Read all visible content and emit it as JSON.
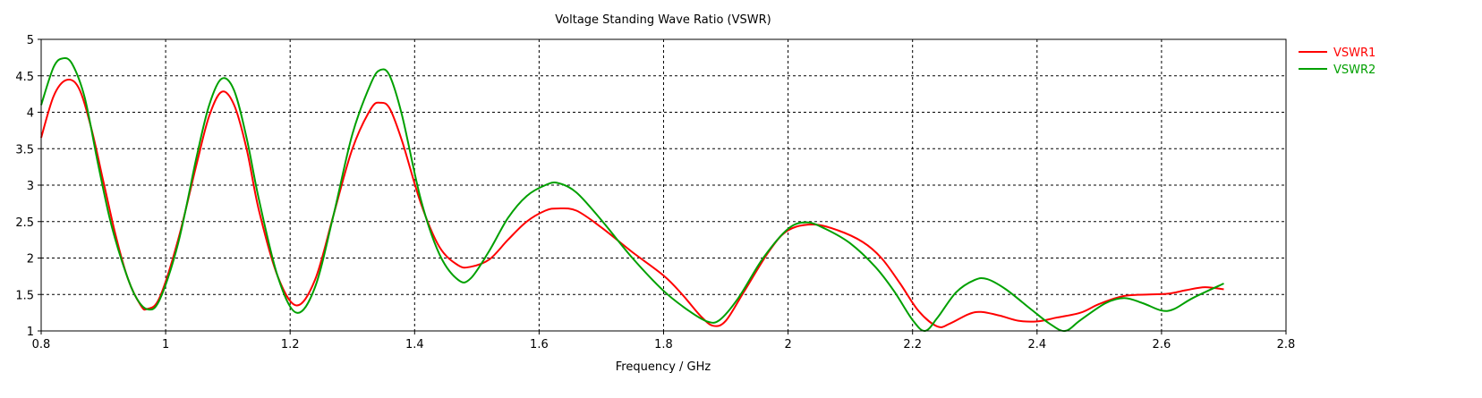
{
  "chart_data": {
    "type": "line",
    "title": "Voltage Standing Wave Ratio (VSWR)",
    "xlabel": "Frequency / GHz",
    "ylabel": "",
    "xlim": [
      0.8,
      2.8
    ],
    "ylim": [
      1,
      5
    ],
    "xticks": [
      0.8,
      1,
      1.2,
      1.4,
      1.6,
      1.8,
      2,
      2.2,
      2.4,
      2.6,
      2.8
    ],
    "yticks": [
      1,
      1.5,
      2,
      2.5,
      3,
      3.5,
      4,
      4.5,
      5
    ],
    "xtick_labels": [
      "0.8",
      "1",
      "1.2",
      "1.4",
      "1.6",
      "1.8",
      "2",
      "2.2",
      "2.4",
      "2.6",
      "2.8"
    ],
    "ytick_labels": [
      "1",
      "1.5",
      "2",
      "2.5",
      "3",
      "3.5",
      "4",
      "4.5",
      "5"
    ],
    "grid": true,
    "legend_position": "top-right",
    "series": [
      {
        "name": "VSWR1",
        "color": "#ff0000",
        "points": [
          [
            0.8,
            3.65
          ],
          [
            0.82,
            4.22
          ],
          [
            0.84,
            4.44
          ],
          [
            0.86,
            4.34
          ],
          [
            0.88,
            3.8
          ],
          [
            0.9,
            3.05
          ],
          [
            0.92,
            2.3
          ],
          [
            0.94,
            1.7
          ],
          [
            0.96,
            1.35
          ],
          [
            0.97,
            1.3
          ],
          [
            0.99,
            1.45
          ],
          [
            1.02,
            2.25
          ],
          [
            1.05,
            3.3
          ],
          [
            1.07,
            3.95
          ],
          [
            1.09,
            4.28
          ],
          [
            1.11,
            4.1
          ],
          [
            1.13,
            3.5
          ],
          [
            1.15,
            2.65
          ],
          [
            1.18,
            1.75
          ],
          [
            1.21,
            1.35
          ],
          [
            1.24,
            1.7
          ],
          [
            1.27,
            2.6
          ],
          [
            1.3,
            3.5
          ],
          [
            1.33,
            4.05
          ],
          [
            1.345,
            4.13
          ],
          [
            1.36,
            4.05
          ],
          [
            1.38,
            3.6
          ],
          [
            1.41,
            2.75
          ],
          [
            1.44,
            2.15
          ],
          [
            1.47,
            1.9
          ],
          [
            1.49,
            1.88
          ],
          [
            1.52,
            1.98
          ],
          [
            1.55,
            2.25
          ],
          [
            1.58,
            2.5
          ],
          [
            1.61,
            2.65
          ],
          [
            1.63,
            2.68
          ],
          [
            1.66,
            2.65
          ],
          [
            1.7,
            2.42
          ],
          [
            1.75,
            2.08
          ],
          [
            1.8,
            1.76
          ],
          [
            1.83,
            1.5
          ],
          [
            1.86,
            1.2
          ],
          [
            1.88,
            1.07
          ],
          [
            1.9,
            1.14
          ],
          [
            1.93,
            1.55
          ],
          [
            1.97,
            2.1
          ],
          [
            2.0,
            2.38
          ],
          [
            2.04,
            2.46
          ],
          [
            2.08,
            2.38
          ],
          [
            2.12,
            2.22
          ],
          [
            2.15,
            2.0
          ],
          [
            2.18,
            1.65
          ],
          [
            2.21,
            1.27
          ],
          [
            2.24,
            1.06
          ],
          [
            2.26,
            1.1
          ],
          [
            2.29,
            1.23
          ],
          [
            2.31,
            1.26
          ],
          [
            2.34,
            1.21
          ],
          [
            2.37,
            1.14
          ],
          [
            2.4,
            1.13
          ],
          [
            2.43,
            1.18
          ],
          [
            2.47,
            1.25
          ],
          [
            2.5,
            1.37
          ],
          [
            2.54,
            1.48
          ],
          [
            2.58,
            1.5
          ],
          [
            2.61,
            1.51
          ],
          [
            2.64,
            1.56
          ],
          [
            2.67,
            1.6
          ],
          [
            2.7,
            1.57
          ]
        ]
      },
      {
        "name": "VSWR2",
        "color": "#00a000",
        "points": [
          [
            0.8,
            4.1
          ],
          [
            0.82,
            4.62
          ],
          [
            0.835,
            4.74
          ],
          [
            0.85,
            4.66
          ],
          [
            0.87,
            4.2
          ],
          [
            0.89,
            3.35
          ],
          [
            0.91,
            2.55
          ],
          [
            0.93,
            1.95
          ],
          [
            0.95,
            1.5
          ],
          [
            0.97,
            1.3
          ],
          [
            0.99,
            1.42
          ],
          [
            1.02,
            2.2
          ],
          [
            1.05,
            3.4
          ],
          [
            1.07,
            4.1
          ],
          [
            1.09,
            4.46
          ],
          [
            1.11,
            4.3
          ],
          [
            1.13,
            3.65
          ],
          [
            1.15,
            2.8
          ],
          [
            1.18,
            1.75
          ],
          [
            1.21,
            1.25
          ],
          [
            1.24,
            1.6
          ],
          [
            1.27,
            2.6
          ],
          [
            1.3,
            3.7
          ],
          [
            1.33,
            4.4
          ],
          [
            1.345,
            4.58
          ],
          [
            1.36,
            4.5
          ],
          [
            1.38,
            3.95
          ],
          [
            1.41,
            2.8
          ],
          [
            1.44,
            2.05
          ],
          [
            1.47,
            1.7
          ],
          [
            1.49,
            1.72
          ],
          [
            1.52,
            2.1
          ],
          [
            1.55,
            2.55
          ],
          [
            1.58,
            2.85
          ],
          [
            1.61,
            3.0
          ],
          [
            1.63,
            3.03
          ],
          [
            1.66,
            2.9
          ],
          [
            1.7,
            2.52
          ],
          [
            1.75,
            2.0
          ],
          [
            1.8,
            1.55
          ],
          [
            1.84,
            1.28
          ],
          [
            1.87,
            1.13
          ],
          [
            1.89,
            1.15
          ],
          [
            1.92,
            1.45
          ],
          [
            1.96,
            2.0
          ],
          [
            2.0,
            2.4
          ],
          [
            2.03,
            2.49
          ],
          [
            2.06,
            2.4
          ],
          [
            2.1,
            2.2
          ],
          [
            2.14,
            1.88
          ],
          [
            2.17,
            1.55
          ],
          [
            2.2,
            1.15
          ],
          [
            2.22,
            1.0
          ],
          [
            2.24,
            1.18
          ],
          [
            2.27,
            1.53
          ],
          [
            2.3,
            1.7
          ],
          [
            2.32,
            1.71
          ],
          [
            2.35,
            1.57
          ],
          [
            2.39,
            1.3
          ],
          [
            2.42,
            1.1
          ],
          [
            2.445,
            1.0
          ],
          [
            2.47,
            1.15
          ],
          [
            2.51,
            1.38
          ],
          [
            2.54,
            1.45
          ],
          [
            2.57,
            1.38
          ],
          [
            2.6,
            1.28
          ],
          [
            2.62,
            1.3
          ],
          [
            2.65,
            1.45
          ],
          [
            2.7,
            1.65
          ]
        ]
      }
    ]
  }
}
